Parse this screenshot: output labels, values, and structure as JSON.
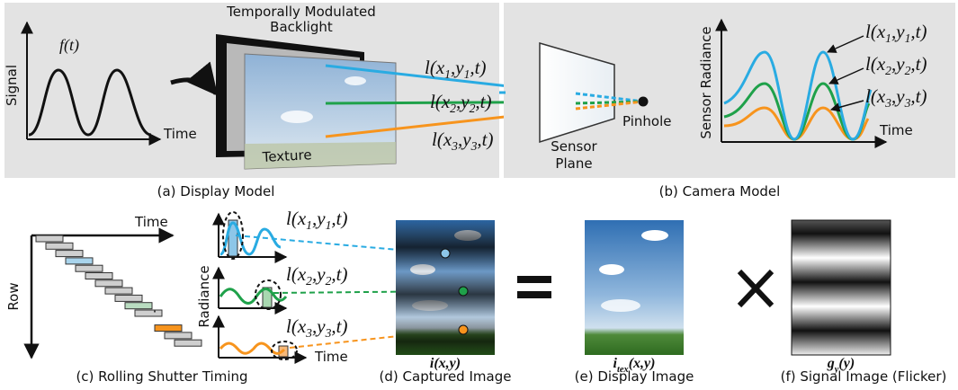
{
  "display_model": {
    "function_label": "f(t)",
    "signal_label": "Signal",
    "time_label": "Time",
    "backlight_label": [
      "Temporally Modulated",
      "Backlight"
    ],
    "texture_label": "Texture",
    "ray_labels": [
      [
        "l(x",
        "1",
        ",y",
        "1",
        ",t)"
      ],
      [
        "l(x",
        "2",
        ",y",
        "2",
        ",t)"
      ],
      [
        "l(x",
        "3",
        ",y",
        "3",
        ",t)"
      ]
    ],
    "caption": "(a) Display Model"
  },
  "camera_model": {
    "sensor_label": [
      "Sensor",
      "Plane"
    ],
    "pinhole_label": "Pinhole",
    "radiance_label": "Sensor Radiance",
    "time_label": "Time",
    "curve_labels": [
      [
        "l(x",
        "1",
        ",y",
        "1",
        ",t)"
      ],
      [
        "l(x",
        "2",
        ",y",
        "2",
        ",t)"
      ],
      [
        "l(x",
        "3",
        ",y",
        "3",
        ",t)"
      ]
    ],
    "caption": "(b) Camera Model"
  },
  "rolling_shutter": {
    "time_label": "Time",
    "row_label": "Row",
    "caption": "(c) Rolling Shutter Timing"
  },
  "radiance_plots": {
    "radiance_label": "Radiance",
    "time_label": "Time",
    "curve_labels": [
      [
        "l(x",
        "1",
        ",y",
        "1",
        ",t)"
      ],
      [
        "l(x",
        "2",
        ",y",
        "2",
        ",t)"
      ],
      [
        "l(x",
        "3",
        ",y",
        "3",
        ",t)"
      ]
    ]
  },
  "captured_image": {
    "label": [
      "i",
      "",
      "(x,y)"
    ],
    "caption": "(d) Captured Image"
  },
  "display_image": {
    "label": [
      "i",
      "tex",
      "(x,y)"
    ],
    "caption": "(e) Display Image"
  },
  "signal_image": {
    "label": [
      "g",
      "y",
      "(y)"
    ],
    "caption": "(f) Signal Image (Flicker)"
  }
}
